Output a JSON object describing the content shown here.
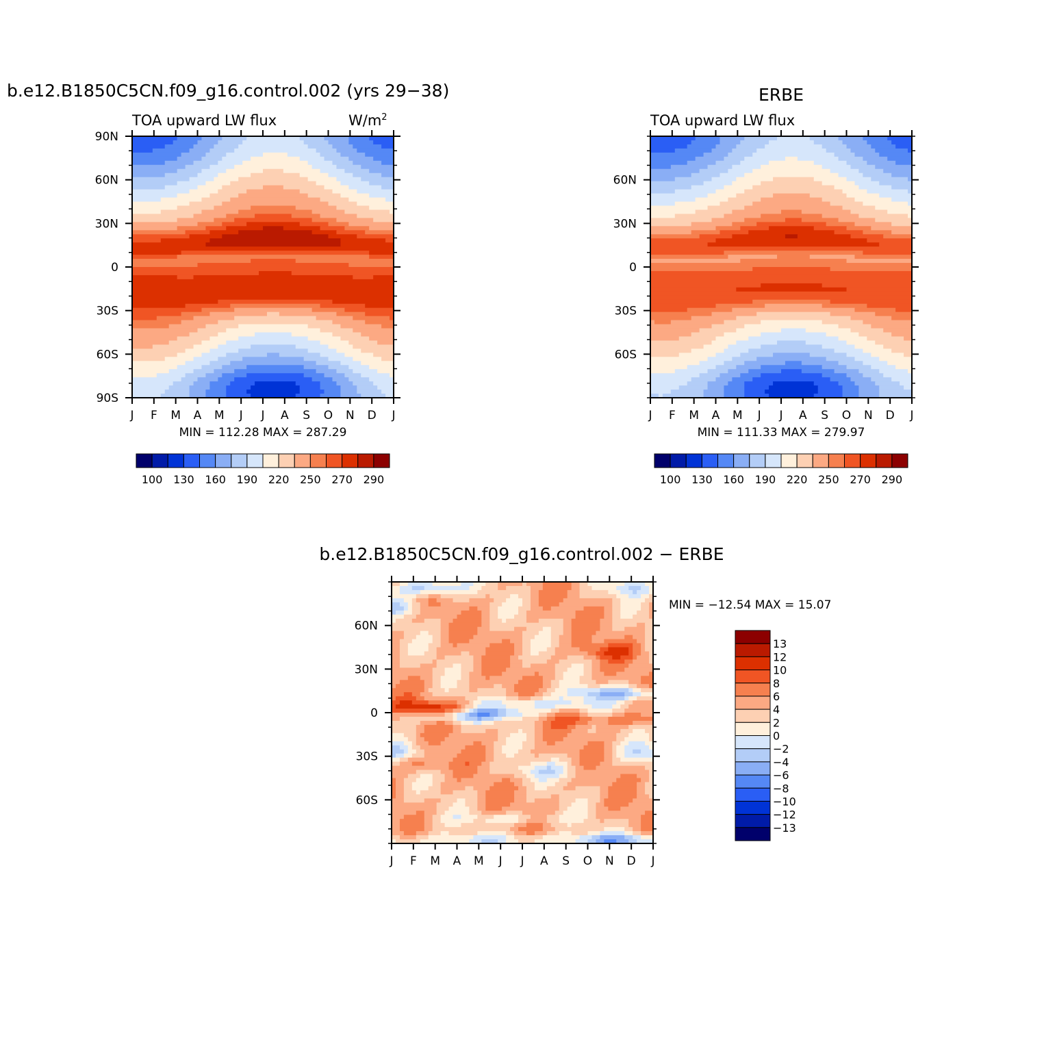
{
  "chart_data": [
    {
      "type": "heatmap",
      "title": "b.e12.B1850C5CN.f09_g16.control.002 (yrs 29−38)",
      "left_label": "TOA upward LW flux",
      "right_label": "W/m",
      "unit_superscript": "2",
      "x_ticks": [
        "J",
        "F",
        "M",
        "A",
        "M",
        "J",
        "J",
        "A",
        "S",
        "O",
        "N",
        "D",
        "J"
      ],
      "y_ticks": [
        "90N",
        "60N",
        "30N",
        "0",
        "30S",
        "60S",
        "90S"
      ],
      "ylim": [
        -90,
        90
      ],
      "min_max_text": "MIN =  112.28 MAX =  287.29",
      "min": 112.28,
      "max": 287.29,
      "colorbar_labels": [
        "100",
        "130",
        "160",
        "190",
        "220",
        "250",
        "270",
        "290"
      ]
    },
    {
      "type": "heatmap",
      "title": "ERBE",
      "left_label": "TOA upward LW flux",
      "x_ticks": [
        "J",
        "F",
        "M",
        "A",
        "M",
        "J",
        "J",
        "A",
        "S",
        "O",
        "N",
        "D",
        "J"
      ],
      "y_ticks": [
        "60N",
        "30N",
        "0",
        "30S",
        "60S"
      ],
      "ylim": [
        -90,
        90
      ],
      "min_max_text": "MIN =  111.33 MAX =  279.97",
      "min": 111.33,
      "max": 279.97,
      "colorbar_labels": [
        "100",
        "130",
        "160",
        "190",
        "220",
        "250",
        "270",
        "290"
      ]
    },
    {
      "type": "heatmap",
      "title": "b.e12.B1850C5CN.f09_g16.control.002 − ERBE",
      "x_ticks": [
        "J",
        "F",
        "M",
        "A",
        "M",
        "J",
        "J",
        "A",
        "S",
        "O",
        "N",
        "D",
        "J"
      ],
      "y_ticks": [
        "60N",
        "30N",
        "0",
        "30S",
        "60S"
      ],
      "ylim": [
        -90,
        90
      ],
      "min_max_text": "MIN = −12.54 MAX =   15.07",
      "min": -12.54,
      "max": 15.07,
      "colorbar_labels": [
        "13",
        "12",
        "10",
        "8",
        "6",
        "4",
        "2",
        "0",
        "−2",
        "−4",
        "−6",
        "−8",
        "−10",
        "−12",
        "−13"
      ]
    }
  ],
  "colors": {
    "abs_palette": [
      "#00006b",
      "#001ba8",
      "#0033d6",
      "#2a5ef5",
      "#5588f5",
      "#8aaef5",
      "#b3cdf7",
      "#d6e6fb",
      "#fff0dc",
      "#fdd0b3",
      "#fca983",
      "#f6804f",
      "#f05524",
      "#dc3000",
      "#ba1a00",
      "#8c0000"
    ],
    "diff_palette": [
      "#8c0000",
      "#ba1a00",
      "#dc3000",
      "#f05524",
      "#f6804f",
      "#fca983",
      "#fdd0b3",
      "#fff0dc",
      "#d6e6fb",
      "#b3cdf7",
      "#8aaef5",
      "#5588f5",
      "#2a5ef5",
      "#0033d6",
      "#001ba8",
      "#00006b"
    ]
  }
}
